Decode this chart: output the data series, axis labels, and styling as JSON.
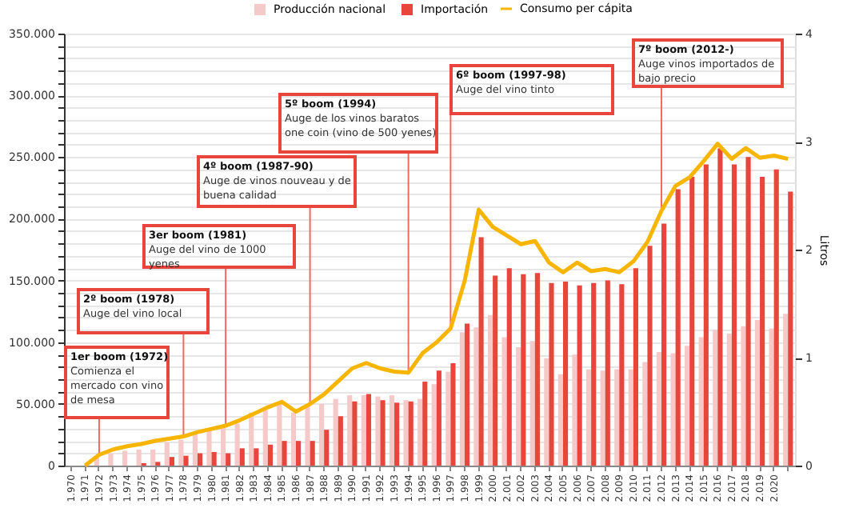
{
  "chart_data": {
    "type": "bar",
    "categories": [
      "1.970",
      "1.971",
      "1.972",
      "1.973",
      "1.974",
      "1.975",
      "1.976",
      "1.977",
      "1.978",
      "1.979",
      "1.980",
      "1.981",
      "1.982",
      "1.983",
      "1.984",
      "1.985",
      "1.986",
      "1.987",
      "1.988",
      "1.989",
      "1.990",
      "1.991",
      "1.992",
      "1.993",
      "1.994",
      "1.995",
      "1.996",
      "1.997",
      "1.998",
      "1.999",
      "2.000",
      "2.001",
      "2.002",
      "2.003",
      "2.004",
      "2.005",
      "2.006",
      "2.007",
      "2.008",
      "2.009",
      "2.010",
      "2.011",
      "2.012",
      "2.013",
      "2.014",
      "2.015",
      "2.016",
      "2.017",
      "2.018",
      "2.019",
      "2.020",
      null
    ],
    "series": [
      {
        "name": "Producción nacional",
        "color": "#f6c9c9",
        "values": [
          null,
          null,
          8000,
          10000,
          12000,
          13000,
          13000,
          19000,
          21000,
          27000,
          29000,
          31000,
          34000,
          43000,
          45000,
          51000,
          43000,
          49000,
          50000,
          54000,
          57000,
          57000,
          56000,
          57000,
          53000,
          54000,
          66000,
          76000,
          108000,
          112000,
          122000,
          104000,
          96000,
          101000,
          87000,
          74000,
          90000,
          78000,
          77000,
          78000,
          78000,
          84000,
          92000,
          91000,
          97000,
          104000,
          110000,
          107000,
          113000,
          118000,
          111000,
          123000
        ]
      },
      {
        "name": "Importación",
        "color": "#e8453c",
        "values": [
          null,
          null,
          null,
          null,
          null,
          2000,
          3000,
          7000,
          8000,
          10000,
          11000,
          10000,
          14000,
          14000,
          17000,
          20000,
          20000,
          20000,
          29000,
          40000,
          52000,
          58000,
          53000,
          51000,
          52000,
          68000,
          77000,
          83000,
          115000,
          185000,
          154000,
          160000,
          155000,
          156000,
          148000,
          149000,
          146000,
          148000,
          150000,
          147000,
          160000,
          178000,
          196000,
          224000,
          234000,
          244000,
          257000,
          244000,
          250000,
          234000,
          240000,
          222000
        ]
      },
      {
        "name": "Consumo per cápita",
        "type": "line",
        "axis": "y2",
        "color": "#f7b500",
        "values": [
          null,
          0,
          0.1,
          0.15,
          0.18,
          0.2,
          0.23,
          0.25,
          0.27,
          0.31,
          0.34,
          0.37,
          0.42,
          0.48,
          0.54,
          0.59,
          0.5,
          0.57,
          0.66,
          0.78,
          0.9,
          0.95,
          0.9,
          0.87,
          0.86,
          1.04,
          1.14,
          1.27,
          1.71,
          2.37,
          2.21,
          2.13,
          2.05,
          2.08,
          1.88,
          1.79,
          1.88,
          1.8,
          1.82,
          1.79,
          1.89,
          2.07,
          2.36,
          2.59,
          2.67,
          2.82,
          2.98,
          2.84,
          2.94,
          2.85,
          2.87,
          2.84
        ]
      }
    ],
    "ylim": [
      0,
      350000
    ],
    "yticks": [
      {
        "value": 0,
        "label": "0"
      },
      {
        "value": 10000,
        "label": null
      },
      {
        "value": 20000,
        "label": null
      },
      {
        "value": 30000,
        "label": null
      },
      {
        "value": 40000,
        "label": null
      },
      {
        "value": 50000,
        "label": "50.000"
      },
      {
        "value": 60000,
        "label": null
      },
      {
        "value": 70000,
        "label": null
      },
      {
        "value": 80000,
        "label": null
      },
      {
        "value": 90000,
        "label": null
      },
      {
        "value": 100000,
        "label": "100.000"
      },
      {
        "value": 110000,
        "label": null
      },
      {
        "value": 120000,
        "label": null
      },
      {
        "value": 130000,
        "label": null
      },
      {
        "value": 140000,
        "label": null
      },
      {
        "value": 150000,
        "label": "150.000"
      },
      {
        "value": 160000,
        "label": null
      },
      {
        "value": 170000,
        "label": null
      },
      {
        "value": 180000,
        "label": null
      },
      {
        "value": 190000,
        "label": null
      },
      {
        "value": 200000,
        "label": "200.000"
      },
      {
        "value": 210000,
        "label": null
      },
      {
        "value": 220000,
        "label": null
      },
      {
        "value": 230000,
        "label": null
      },
      {
        "value": 240000,
        "label": null
      },
      {
        "value": 250000,
        "label": "250.000"
      },
      {
        "value": 260000,
        "label": null
      },
      {
        "value": 270000,
        "label": null
      },
      {
        "value": 280000,
        "label": null
      },
      {
        "value": 290000,
        "label": null
      },
      {
        "value": 300000,
        "label": "300.000"
      },
      {
        "value": 310000,
        "label": null
      },
      {
        "value": 320000,
        "label": null
      },
      {
        "value": 330000,
        "label": null
      },
      {
        "value": 340000,
        "label": null
      },
      {
        "value": 350000,
        "label": "350.000"
      }
    ],
    "y2lim": [
      0,
      4
    ],
    "y2ticks": [
      0,
      1,
      2,
      3,
      4
    ],
    "y2label": "Litros",
    "grid": "y",
    "legend": "top",
    "annotations": [
      {
        "text": "1er boom (1972)\nComienza el\nmercado con vino\nde mesa",
        "x": "1.972",
        "y": 9000
      },
      {
        "text": "2º boom (1978)\nAuge del vino local",
        "x": "1.978",
        "y": 24000
      },
      {
        "text": "3er boom (1981)\nAuge del vino de 1000\nyenes",
        "x": "1.981",
        "y": 32000
      },
      {
        "text": "4º boom (1987-90)\nAuge de vinos nouveau y de\nbuena calidad",
        "x": "1.987",
        "y": 50000
      },
      {
        "text": "5º boom (1994)\nAuge de los vinos baratos\none coin (vino de 500 yenes)",
        "x": "1.994",
        "y": 75000
      },
      {
        "text": "6º boom (1997-98)\nAuge del vino tinto",
        "x": "1.997",
        "y": 111000
      },
      {
        "text": "7º boom (2012-)\nAuge vinos importados de\nbajo precio",
        "x": "2.012",
        "y": 206000
      }
    ]
  }
}
